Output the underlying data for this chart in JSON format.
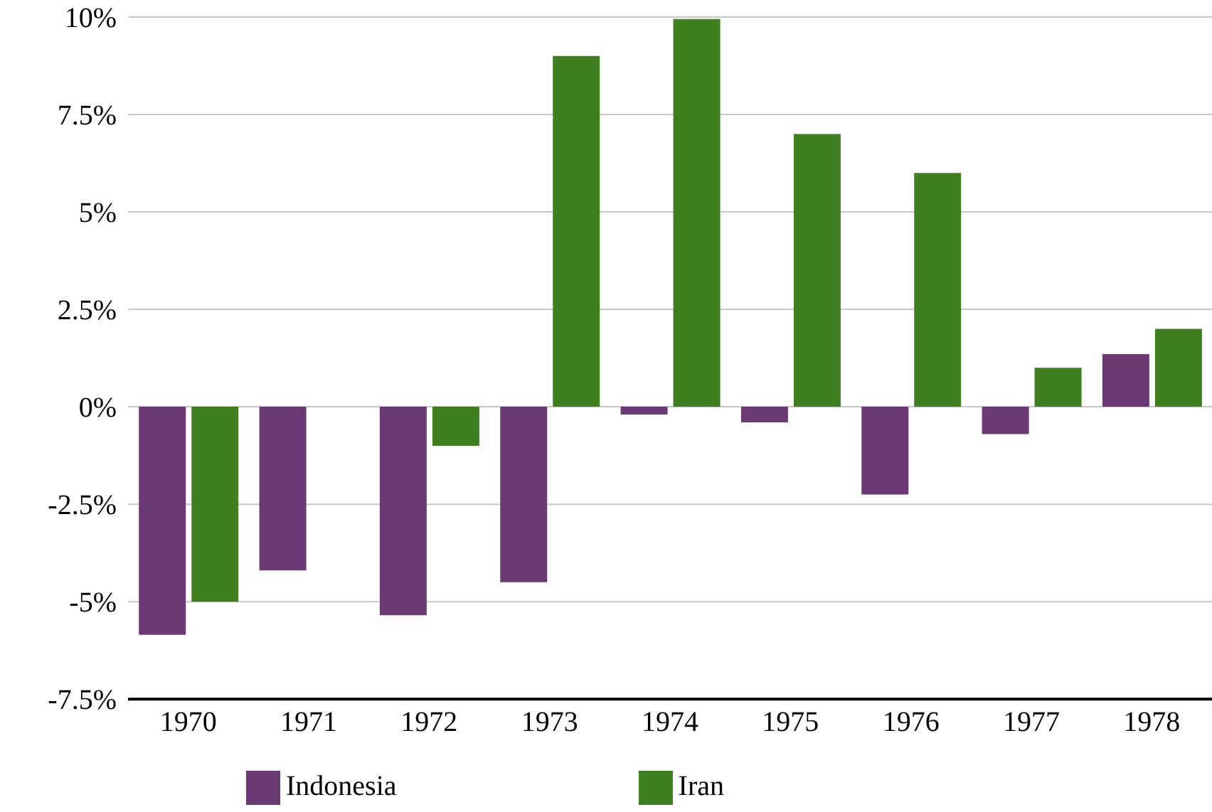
{
  "chart_data": {
    "type": "bar",
    "categories": [
      "1970",
      "1971",
      "1972",
      "1973",
      "1974",
      "1975",
      "1976",
      "1977",
      "1978"
    ],
    "series": [
      {
        "name": "Indonesia",
        "color": "#6b3a75",
        "values": [
          -5.85,
          -4.2,
          -5.35,
          -4.5,
          -0.2,
          -0.4,
          -2.25,
          -0.7,
          1.35
        ]
      },
      {
        "name": "Iran",
        "color": "#3f7f1f",
        "values": [
          -5,
          null,
          -1,
          9,
          9.95,
          7,
          6,
          1,
          2
        ]
      }
    ],
    "ylim": [
      -7.5,
      10
    ],
    "yticks": [
      {
        "value": -7.5,
        "label": "-7.5%"
      },
      {
        "value": -5,
        "label": "-5%"
      },
      {
        "value": -2.5,
        "label": "-2.5%"
      },
      {
        "value": 0,
        "label": "0%"
      },
      {
        "value": 2.5,
        "label": "2.5%"
      },
      {
        "value": 5,
        "label": "5%"
      },
      {
        "value": 7.5,
        "label": "7.5%"
      },
      {
        "value": 10,
        "label": "10%"
      }
    ],
    "grid": "y",
    "legend": "bottom"
  }
}
